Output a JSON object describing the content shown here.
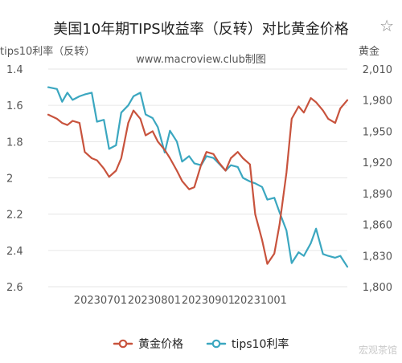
{
  "header": {
    "title": "美国10年期TIPS收益率（反转）对比黄金价格",
    "subtitle": "www.macroview.club制图",
    "left_axis_title": "tips10利率（反转）",
    "right_axis_title": "黄金",
    "star_icon": "star-outline-icon"
  },
  "legend": {
    "gold_label": "黄金价格",
    "tips_label": "tips10利率"
  },
  "watermark": "宏观茶馆",
  "colors": {
    "gold": "#c8533d",
    "tips": "#3ba7c0",
    "grid": "#e6e6e6",
    "axis_text": "#555555"
  },
  "chart_data": {
    "type": "line",
    "title": "美国10年期TIPS收益率（反转）对比黄金价格",
    "x_ticks": [
      "20230701",
      "20230801",
      "20230901",
      "20231001"
    ],
    "y_left": {
      "label": "tips10利率（反转）",
      "inverted": true,
      "range": [
        1.4,
        2.6
      ],
      "ticks": [
        "1.4",
        "1.6",
        "1.8",
        "2",
        "2.2",
        "2.4",
        "2.6"
      ]
    },
    "y_right": {
      "label": "黄金",
      "range": [
        1800,
        2010
      ],
      "ticks": [
        "1,800",
        "1,830",
        "1,860",
        "1,890",
        "1,920",
        "1,950",
        "1,980",
        "2,010"
      ]
    },
    "grid": "horizontal",
    "legend_position": "bottom",
    "series": [
      {
        "name": "tips10利率",
        "axis": "left",
        "x": [
          "2023-06-01",
          "2023-06-06",
          "2023-06-09",
          "2023-06-12",
          "2023-06-15",
          "2023-06-19",
          "2023-06-22",
          "2023-06-26",
          "2023-06-29",
          "2023-07-03",
          "2023-07-06",
          "2023-07-10",
          "2023-07-13",
          "2023-07-17",
          "2023-07-20",
          "2023-07-24",
          "2023-07-27",
          "2023-07-31",
          "2023-08-03",
          "2023-08-07",
          "2023-08-10",
          "2023-08-14",
          "2023-08-17",
          "2023-08-21",
          "2023-08-24",
          "2023-08-28",
          "2023-08-31",
          "2023-09-04",
          "2023-09-07",
          "2023-09-11",
          "2023-09-14",
          "2023-09-18",
          "2023-09-21",
          "2023-09-25",
          "2023-09-28",
          "2023-10-02",
          "2023-10-05",
          "2023-10-09",
          "2023-10-12",
          "2023-10-16",
          "2023-10-19",
          "2023-10-23",
          "2023-10-26",
          "2023-10-30",
          "2023-11-02",
          "2023-11-06",
          "2023-11-09",
          "2023-11-13",
          "2023-11-16",
          "2023-11-20"
        ],
        "values": [
          1.5,
          1.51,
          1.58,
          1.53,
          1.57,
          1.55,
          1.54,
          1.53,
          1.69,
          1.68,
          1.84,
          1.82,
          1.64,
          1.6,
          1.55,
          1.53,
          1.65,
          1.67,
          1.72,
          1.86,
          1.74,
          1.8,
          1.91,
          1.88,
          1.92,
          1.93,
          1.88,
          1.89,
          1.92,
          1.96,
          1.93,
          1.94,
          2.0,
          2.02,
          2.03,
          2.05,
          2.12,
          2.11,
          2.19,
          2.29,
          2.47,
          2.41,
          2.43,
          2.36,
          2.28,
          2.42,
          2.43,
          2.44,
          2.43,
          2.49
        ]
      },
      {
        "name": "黄金价格",
        "axis": "right",
        "x": [
          "2023-06-01",
          "2023-06-06",
          "2023-06-09",
          "2023-06-12",
          "2023-06-15",
          "2023-06-19",
          "2023-06-22",
          "2023-06-26",
          "2023-06-29",
          "2023-07-03",
          "2023-07-06",
          "2023-07-10",
          "2023-07-13",
          "2023-07-17",
          "2023-07-20",
          "2023-07-24",
          "2023-07-27",
          "2023-07-31",
          "2023-08-03",
          "2023-08-07",
          "2023-08-10",
          "2023-08-14",
          "2023-08-17",
          "2023-08-21",
          "2023-08-24",
          "2023-08-28",
          "2023-08-31",
          "2023-09-04",
          "2023-09-07",
          "2023-09-11",
          "2023-09-14",
          "2023-09-18",
          "2023-09-21",
          "2023-09-25",
          "2023-09-28",
          "2023-10-02",
          "2023-10-05",
          "2023-10-09",
          "2023-10-12",
          "2023-10-16",
          "2023-10-19",
          "2023-10-23",
          "2023-10-26",
          "2023-10-30",
          "2023-11-02",
          "2023-11-06",
          "2023-11-09",
          "2023-11-13",
          "2023-11-16",
          "2023-11-20"
        ],
        "values": [
          1966,
          1962,
          1958,
          1956,
          1960,
          1958,
          1930,
          1924,
          1922,
          1914,
          1906,
          1912,
          1924,
          1958,
          1970,
          1962,
          1946,
          1950,
          1940,
          1932,
          1924,
          1912,
          1902,
          1894,
          1896,
          1918,
          1930,
          1928,
          1920,
          1912,
          1924,
          1930,
          1924,
          1918,
          1870,
          1845,
          1822,
          1832,
          1860,
          1910,
          1962,
          1974,
          1968,
          1982,
          1978,
          1970,
          1962,
          1958,
          1972,
          1980
        ]
      }
    ]
  }
}
